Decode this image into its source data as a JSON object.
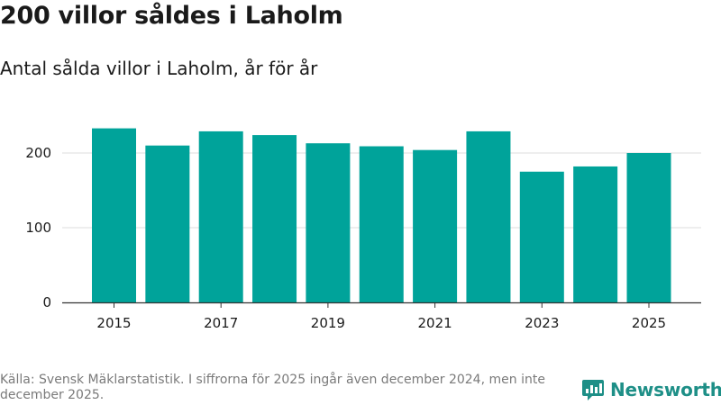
{
  "title": "200 villor såldes i Laholm",
  "subtitle": "Antal sålda villor i Laholm, år för år",
  "colors": {
    "bar": "#00a39a",
    "grid": "#dddddd",
    "axis": "#333333",
    "brand": "#1e8f87"
  },
  "chart_data": {
    "type": "bar",
    "title": "200 villor såldes i Laholm",
    "subtitle": "Antal sålda villor i Laholm, år för år",
    "categories": [
      "2015",
      "2016",
      "2017",
      "2018",
      "2019",
      "2020",
      "2021",
      "2022",
      "2023",
      "2024",
      "2025"
    ],
    "values": [
      233,
      210,
      229,
      224,
      213,
      209,
      204,
      229,
      175,
      182,
      200
    ],
    "x_tick_labels": [
      "2015",
      "2017",
      "2019",
      "2021",
      "2023",
      "2025"
    ],
    "y_ticks": [
      0,
      100,
      200
    ],
    "ylim": [
      0,
      240
    ],
    "xlabel": "",
    "ylabel": "",
    "grid": true
  },
  "footer": {
    "source": "Källa: Svensk Mäklarstatistik. I siffrorna för 2025 ingår även december 2024, men inte december 2025."
  },
  "brand": {
    "name": "Newsworthy",
    "icon": "newsworthy-logo-icon"
  }
}
